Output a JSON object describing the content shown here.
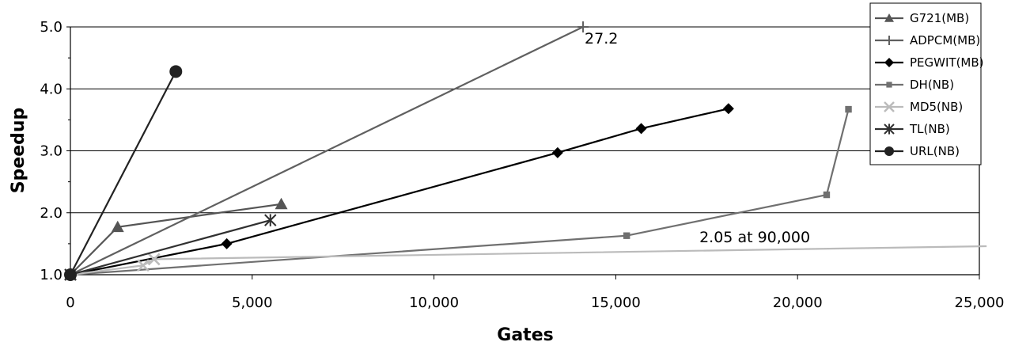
{
  "chart_data": {
    "type": "line",
    "xlabel": "Gates",
    "ylabel": "Speedup",
    "xlim": [
      0,
      25000
    ],
    "ylim": [
      1.0,
      5.0
    ],
    "xticks": [
      "0",
      "5,000",
      "10,000",
      "15,000",
      "20,000",
      "25,000"
    ],
    "yticks": [
      "1.0",
      "2.0",
      "3.0",
      "4.0",
      "5.0"
    ],
    "grid": "horizontal",
    "legend_position": "top-right",
    "series": [
      {
        "name": "G721(MB)",
        "color": "#555555",
        "marker": "triangle",
        "x": [
          0,
          1300,
          5800
        ],
        "y": [
          1.0,
          1.77,
          2.14
        ]
      },
      {
        "name": "ADPCM(MB)",
        "color": "#606060",
        "marker": "plus",
        "x": [
          0,
          14100
        ],
        "y": [
          1.0,
          5.0
        ]
      },
      {
        "name": "PEGWIT(MB)",
        "color": "#000000",
        "marker": "diamond",
        "x": [
          0,
          4300,
          13400,
          15700,
          18100
        ],
        "y": [
          1.0,
          1.5,
          2.97,
          3.36,
          3.68
        ]
      },
      {
        "name": "DH(NB)",
        "color": "#707070",
        "marker": "square-small",
        "x": [
          0,
          15300,
          20800,
          21400
        ],
        "y": [
          1.0,
          1.63,
          2.29,
          3.67
        ]
      },
      {
        "name": "MD5(NB)",
        "color": "#bbbbbb",
        "marker": "x",
        "x": [
          0,
          2000,
          2300,
          25200
        ],
        "y": [
          1.0,
          1.15,
          1.25,
          1.46
        ]
      },
      {
        "name": "TL(NB)",
        "color": "#303030",
        "marker": "asterisk",
        "x": [
          0,
          5500
        ],
        "y": [
          1.0,
          1.88
        ]
      },
      {
        "name": "URL(NB)",
        "color": "#222222",
        "marker": "circle",
        "x": [
          0,
          2900
        ],
        "y": [
          1.0,
          4.28
        ]
      }
    ],
    "annotations": [
      {
        "text": "27.2",
        "x": 14100,
        "y": 5.0
      },
      {
        "text": "2.05 at 90,000",
        "x": 17300,
        "y": 1.45
      }
    ]
  }
}
